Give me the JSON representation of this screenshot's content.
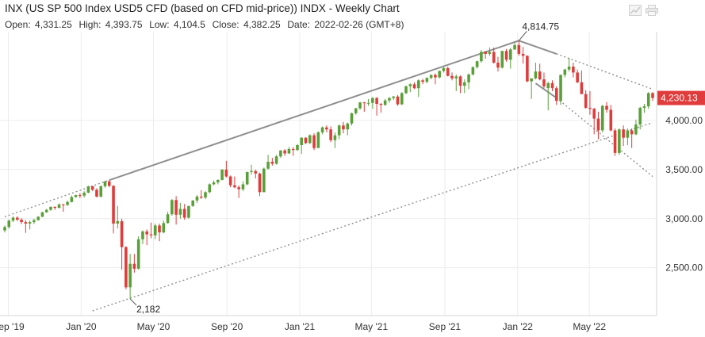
{
  "header": {
    "title": "INX (US SP 500 Index USD5 CFD (based on CFD mid-price)) INDX - Weekly Chart",
    "open_label": "Open:",
    "open_value": "4,331.25",
    "high_label": "High:",
    "high_value": "4,393.75",
    "low_label": "Low:",
    "low_value": "4,104.5",
    "close_label": "Close:",
    "close_value": "4,382.25",
    "date_label": "Date:",
    "date_value": "2022-02-26 (GMT+8)"
  },
  "icons": [
    "chart-settings-icon",
    "print-icon"
  ],
  "colors": {
    "up": "#5aa03a",
    "down": "#e03c3c",
    "trendline": "#8f8f8f",
    "last_price_bg": "#e03c3c"
  },
  "chart_data": {
    "type": "candlestick",
    "title": "INX (US SP 500 Index USD5 CFD (based on CFD mid-price)) INDX - Weekly Chart",
    "x_ticks": [
      "Sep '19",
      "Jan '20",
      "May '20",
      "Sep '20",
      "Jan '21",
      "May '21",
      "Sep '21",
      "Jan '22",
      "May '22"
    ],
    "y_ticks": [
      "2,500.00",
      "3,000.00",
      "3,500.00",
      "4,000.00"
    ],
    "y_tick_values": [
      2500,
      3000,
      3500,
      4000
    ],
    "ylim": [
      2020,
      4930
    ],
    "last_price": {
      "value": 4230.13,
      "label": "4,230.13"
    },
    "annotations": [
      {
        "label": "4,814.75",
        "value": 4814.75,
        "date": "2022-01-03"
      },
      {
        "label": "2,182",
        "value": 2182,
        "date": "2020-03-23"
      }
    ],
    "trendlines": [
      {
        "style": "solid",
        "from": {
          "date": "2020-02-17",
          "value": 3393
        },
        "to": {
          "date": "2022-01-03",
          "value": 4814.75
        }
      },
      {
        "style": "dotted",
        "from": {
          "date": "2019-08-26",
          "value": 3020
        },
        "to": {
          "date": "2020-02-17",
          "value": 3393
        }
      },
      {
        "style": "dotted",
        "from": {
          "date": "2020-01-20",
          "value": 2060
        },
        "to": {
          "date": "2022-08-15",
          "value": 3980
        }
      },
      {
        "style": "solid",
        "from": {
          "date": "2022-01-03",
          "value": 4814.75
        },
        "to": {
          "date": "2022-03-07",
          "value": 4680
        }
      },
      {
        "style": "dotted",
        "from": {
          "date": "2022-03-07",
          "value": 4680
        },
        "to": {
          "date": "2022-08-15",
          "value": 4320
        }
      },
      {
        "style": "solid",
        "from": {
          "date": "2022-01-31",
          "value": 4380
        },
        "to": {
          "date": "2022-03-07",
          "value": 4230
        }
      },
      {
        "style": "dotted",
        "from": {
          "date": "2022-03-07",
          "value": 4230
        },
        "to": {
          "date": "2022-08-15",
          "value": 3430
        }
      }
    ],
    "candles": [
      [
        "2019-08-26",
        2880,
        2930,
        2860,
        2915
      ],
      [
        "2019-09-02",
        2915,
        2990,
        2900,
        2980
      ],
      [
        "2019-09-09",
        2980,
        3025,
        2965,
        3010
      ],
      [
        "2019-09-16",
        3010,
        3025,
        2975,
        2990
      ],
      [
        "2019-09-23",
        2990,
        3005,
        2945,
        2965
      ],
      [
        "2019-09-30",
        2965,
        2985,
        2855,
        2950
      ],
      [
        "2019-10-07",
        2950,
        2980,
        2890,
        2965
      ],
      [
        "2019-10-14",
        2965,
        3000,
        2945,
        2985
      ],
      [
        "2019-10-21",
        2985,
        3025,
        2980,
        3020
      ],
      [
        "2019-10-28",
        3020,
        3070,
        3015,
        3065
      ],
      [
        "2019-11-04",
        3065,
        3100,
        3060,
        3090
      ],
      [
        "2019-11-11",
        3090,
        3125,
        3080,
        3120
      ],
      [
        "2019-11-18",
        3120,
        3125,
        3090,
        3110
      ],
      [
        "2019-11-25",
        3110,
        3155,
        3105,
        3145
      ],
      [
        "2019-12-02",
        3145,
        3150,
        3070,
        3140
      ],
      [
        "2019-12-09",
        3140,
        3185,
        3130,
        3170
      ],
      [
        "2019-12-16",
        3170,
        3235,
        3165,
        3220
      ],
      [
        "2019-12-23",
        3220,
        3245,
        3215,
        3240
      ],
      [
        "2019-12-30",
        3240,
        3260,
        3210,
        3235
      ],
      [
        "2020-01-06",
        3235,
        3280,
        3215,
        3265
      ],
      [
        "2020-01-13",
        3265,
        3335,
        3260,
        3330
      ],
      [
        "2020-01-20",
        3330,
        3335,
        3280,
        3295
      ],
      [
        "2020-01-27",
        3295,
        3310,
        3215,
        3225
      ],
      [
        "2020-02-03",
        3225,
        3340,
        3215,
        3330
      ],
      [
        "2020-02-10",
        3330,
        3385,
        3315,
        3380
      ],
      [
        "2020-02-17",
        3380,
        3393,
        3320,
        3335
      ],
      [
        "2020-02-24",
        3335,
        3340,
        2850,
        2950
      ],
      [
        "2020-03-02",
        2950,
        3130,
        2900,
        2975
      ],
      [
        "2020-03-09",
        2975,
        3000,
        2480,
        2710
      ],
      [
        "2020-03-16",
        2710,
        2720,
        2280,
        2300
      ],
      [
        "2020-03-23",
        2300,
        2640,
        2182,
        2540
      ],
      [
        "2020-03-30",
        2540,
        2640,
        2450,
        2490
      ],
      [
        "2020-04-06",
        2490,
        2820,
        2480,
        2790
      ],
      [
        "2020-04-13",
        2790,
        2880,
        2740,
        2870
      ],
      [
        "2020-04-20",
        2870,
        2890,
        2730,
        2840
      ],
      [
        "2020-04-27",
        2840,
        2960,
        2800,
        2830
      ],
      [
        "2020-05-04",
        2830,
        2950,
        2790,
        2930
      ],
      [
        "2020-05-11",
        2930,
        2950,
        2770,
        2860
      ],
      [
        "2020-05-18",
        2860,
        2980,
        2850,
        2955
      ],
      [
        "2020-05-25",
        2955,
        3070,
        2950,
        3045
      ],
      [
        "2020-06-01",
        3045,
        3200,
        3030,
        3190
      ],
      [
        "2020-06-08",
        3190,
        3230,
        2940,
        3040
      ],
      [
        "2020-06-15",
        3040,
        3160,
        3000,
        3100
      ],
      [
        "2020-06-22",
        3100,
        3150,
        2990,
        3010
      ],
      [
        "2020-06-29",
        3010,
        3130,
        3000,
        3130
      ],
      [
        "2020-07-06",
        3130,
        3190,
        3120,
        3185
      ],
      [
        "2020-07-13",
        3185,
        3240,
        3160,
        3225
      ],
      [
        "2020-07-20",
        3225,
        3290,
        3200,
        3215
      ],
      [
        "2020-07-27",
        3215,
        3280,
        3200,
        3270
      ],
      [
        "2020-08-03",
        3270,
        3360,
        3260,
        3350
      ],
      [
        "2020-08-10",
        3350,
        3390,
        3340,
        3370
      ],
      [
        "2020-08-17",
        3370,
        3400,
        3350,
        3395
      ],
      [
        "2020-08-24",
        3395,
        3505,
        3390,
        3500
      ],
      [
        "2020-08-31",
        3500,
        3590,
        3420,
        3430
      ],
      [
        "2020-09-07",
        3430,
        3440,
        3320,
        3340
      ],
      [
        "2020-09-14",
        3340,
        3430,
        3310,
        3320
      ],
      [
        "2020-09-21",
        3320,
        3340,
        3210,
        3300
      ],
      [
        "2020-09-28",
        3300,
        3380,
        3280,
        3350
      ],
      [
        "2020-10-05",
        3350,
        3480,
        3340,
        3475
      ],
      [
        "2020-10-12",
        3475,
        3550,
        3450,
        3485
      ],
      [
        "2020-10-19",
        3485,
        3500,
        3410,
        3460
      ],
      [
        "2020-10-26",
        3460,
        3470,
        3230,
        3270
      ],
      [
        "2020-11-02",
        3270,
        3520,
        3270,
        3510
      ],
      [
        "2020-11-09",
        3510,
        3650,
        3500,
        3580
      ],
      [
        "2020-11-16",
        3580,
        3620,
        3540,
        3560
      ],
      [
        "2020-11-23",
        3560,
        3650,
        3550,
        3635
      ],
      [
        "2020-11-30",
        3635,
        3700,
        3620,
        3695
      ],
      [
        "2020-12-07",
        3695,
        3710,
        3640,
        3665
      ],
      [
        "2020-12-14",
        3665,
        3730,
        3660,
        3710
      ],
      [
        "2020-12-21",
        3710,
        3730,
        3640,
        3700
      ],
      [
        "2020-12-28",
        3700,
        3760,
        3690,
        3750
      ],
      [
        "2021-01-04",
        3750,
        3830,
        3660,
        3825
      ],
      [
        "2021-01-11",
        3825,
        3830,
        3760,
        3770
      ],
      [
        "2021-01-18",
        3770,
        3860,
        3760,
        3850
      ],
      [
        "2021-01-25",
        3850,
        3870,
        3700,
        3720
      ],
      [
        "2021-02-01",
        3720,
        3890,
        3720,
        3880
      ],
      [
        "2021-02-08",
        3880,
        3940,
        3860,
        3930
      ],
      [
        "2021-02-15",
        3930,
        3950,
        3880,
        3910
      ],
      [
        "2021-02-22",
        3910,
        3940,
        3780,
        3800
      ],
      [
        "2021-03-01",
        3800,
        3880,
        3720,
        3850
      ],
      [
        "2021-03-08",
        3850,
        3960,
        3810,
        3950
      ],
      [
        "2021-03-15",
        3950,
        3985,
        3870,
        3910
      ],
      [
        "2021-03-22",
        3910,
        3980,
        3850,
        3970
      ],
      [
        "2021-03-29",
        3970,
        4080,
        3950,
        4075
      ],
      [
        "2021-04-05",
        4075,
        4130,
        4060,
        4125
      ],
      [
        "2021-04-12",
        4125,
        4190,
        4110,
        4185
      ],
      [
        "2021-04-19",
        4185,
        4190,
        4090,
        4180
      ],
      [
        "2021-04-26",
        4180,
        4220,
        4150,
        4180
      ],
      [
        "2021-05-03",
        4180,
        4240,
        4120,
        4230
      ],
      [
        "2021-05-10",
        4230,
        4240,
        4050,
        4170
      ],
      [
        "2021-05-17",
        4170,
        4180,
        4080,
        4160
      ],
      [
        "2021-05-24",
        4160,
        4220,
        4150,
        4205
      ],
      [
        "2021-05-31",
        4205,
        4240,
        4180,
        4230
      ],
      [
        "2021-06-07",
        4230,
        4250,
        4210,
        4245
      ],
      [
        "2021-06-14",
        4245,
        4260,
        4150,
        4165
      ],
      [
        "2021-06-21",
        4165,
        4290,
        4160,
        4280
      ],
      [
        "2021-06-28",
        4280,
        4355,
        4270,
        4350
      ],
      [
        "2021-07-05",
        4350,
        4380,
        4290,
        4370
      ],
      [
        "2021-07-12",
        4370,
        4390,
        4320,
        4330
      ],
      [
        "2021-07-19",
        4330,
        4420,
        4240,
        4410
      ],
      [
        "2021-07-26",
        4410,
        4425,
        4370,
        4395
      ],
      [
        "2021-08-02",
        4395,
        4440,
        4380,
        4435
      ],
      [
        "2021-08-09",
        4435,
        4470,
        4420,
        4465
      ],
      [
        "2021-08-16",
        4465,
        4480,
        4370,
        4440
      ],
      [
        "2021-08-23",
        4440,
        4510,
        4430,
        4505
      ],
      [
        "2021-08-30",
        4505,
        4545,
        4490,
        4535
      ],
      [
        "2021-09-06",
        4535,
        4550,
        4450,
        4455
      ],
      [
        "2021-09-13",
        4455,
        4490,
        4410,
        4430
      ],
      [
        "2021-09-20",
        4430,
        4470,
        4300,
        4450
      ],
      [
        "2021-09-27",
        4450,
        4460,
        4280,
        4355
      ],
      [
        "2021-10-04",
        4355,
        4420,
        4280,
        4390
      ],
      [
        "2021-10-11",
        4390,
        4480,
        4320,
        4470
      ],
      [
        "2021-10-18",
        4470,
        4550,
        4460,
        4545
      ],
      [
        "2021-10-25",
        4545,
        4610,
        4530,
        4605
      ],
      [
        "2021-11-01",
        4605,
        4720,
        4590,
        4700
      ],
      [
        "2021-11-08",
        4700,
        4710,
        4630,
        4680
      ],
      [
        "2021-11-15",
        4680,
        4745,
        4660,
        4700
      ],
      [
        "2021-11-22",
        4700,
        4745,
        4580,
        4590
      ],
      [
        "2021-11-29",
        4590,
        4650,
        4500,
        4540
      ],
      [
        "2021-12-06",
        4540,
        4710,
        4530,
        4710
      ],
      [
        "2021-12-13",
        4710,
        4730,
        4600,
        4620
      ],
      [
        "2021-12-20",
        4620,
        4740,
        4530,
        4725
      ],
      [
        "2021-12-27",
        4725,
        4790,
        4720,
        4770
      ],
      [
        "2022-01-03",
        4770,
        4814.75,
        4660,
        4680
      ],
      [
        "2022-01-10",
        4680,
        4750,
        4580,
        4660
      ],
      [
        "2022-01-17",
        4660,
        4665,
        4390,
        4400
      ],
      [
        "2022-01-24",
        4400,
        4430,
        4220,
        4430
      ],
      [
        "2022-01-31",
        4430,
        4590,
        4420,
        4500
      ],
      [
        "2022-02-07",
        4500,
        4580,
        4410,
        4420
      ],
      [
        "2022-02-14",
        4420,
        4490,
        4330,
        4350
      ],
      [
        "2022-02-21",
        4331.25,
        4393.75,
        4104.5,
        4382.25
      ],
      [
        "2022-02-28",
        4382,
        4410,
        4300,
        4330
      ],
      [
        "2022-03-07",
        4330,
        4350,
        4160,
        4200
      ],
      [
        "2022-03-14",
        4200,
        4470,
        4160,
        4465
      ],
      [
        "2022-03-21",
        4465,
        4530,
        4440,
        4520
      ],
      [
        "2022-03-28",
        4520,
        4640,
        4500,
        4550
      ],
      [
        "2022-04-04",
        4550,
        4590,
        4440,
        4490
      ],
      [
        "2022-04-11",
        4490,
        4520,
        4380,
        4390
      ],
      [
        "2022-04-18",
        4390,
        4510,
        4270,
        4270
      ],
      [
        "2022-04-25",
        4270,
        4310,
        4120,
        4130
      ],
      [
        "2022-05-02",
        4130,
        4300,
        4060,
        4120
      ],
      [
        "2022-05-09",
        4120,
        4130,
        3860,
        4020
      ],
      [
        "2022-05-16",
        4020,
        4090,
        3810,
        3900
      ],
      [
        "2022-05-23",
        3900,
        4160,
        3880,
        4150
      ],
      [
        "2022-05-30",
        4150,
        4190,
        4080,
        4110
      ],
      [
        "2022-06-06",
        4110,
        4160,
        3890,
        3900
      ],
      [
        "2022-06-13",
        3900,
        3920,
        3640,
        3670
      ],
      [
        "2022-06-20",
        3670,
        3920,
        3650,
        3910
      ],
      [
        "2022-06-27",
        3910,
        3950,
        3740,
        3825
      ],
      [
        "2022-07-04",
        3825,
        3920,
        3750,
        3900
      ],
      [
        "2022-07-11",
        3900,
        3920,
        3720,
        3860
      ],
      [
        "2022-07-18",
        3860,
        4010,
        3850,
        3960
      ],
      [
        "2022-07-25",
        3960,
        4140,
        3910,
        4130
      ],
      [
        "2022-08-01",
        4130,
        4170,
        4080,
        4145
      ],
      [
        "2022-08-08",
        4145,
        4290,
        4120,
        4280
      ],
      [
        "2022-08-15",
        4280,
        4290,
        4200,
        4230
      ]
    ]
  }
}
